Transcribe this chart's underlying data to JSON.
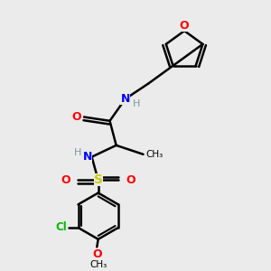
{
  "bg_color": "#ebebeb",
  "atom_colors": {
    "C": "#000000",
    "H": "#7a9a9a",
    "N": "#0000ff",
    "O": "#ff0000",
    "S": "#cccc00",
    "Cl": "#00bb00"
  },
  "bond_color": "#000000",
  "bond_width": 1.8,
  "figsize": [
    3.0,
    3.0
  ],
  "dpi": 100,
  "xlim": [
    0,
    10
  ],
  "ylim": [
    0,
    10
  ]
}
